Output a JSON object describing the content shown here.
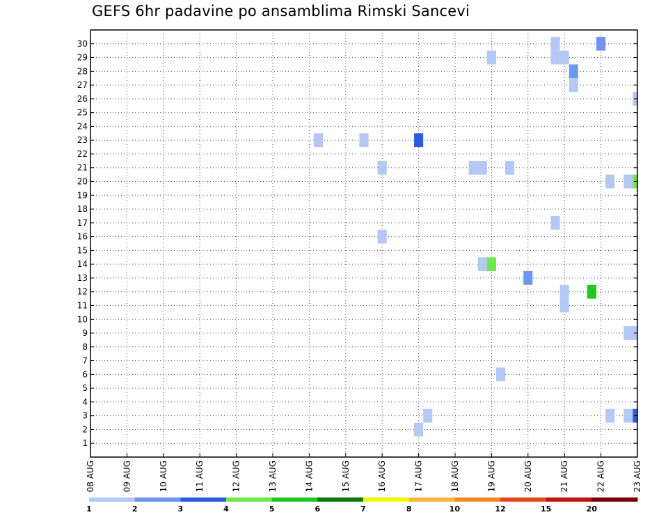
{
  "chart_data": {
    "type": "heatmap",
    "title": "GEFS 6hr padavine po ansamblima Rimski Sancevi",
    "xlabel": "",
    "ylabel": "",
    "x_tick_labels": [
      "08 AUG",
      "09 AUG",
      "10 AUG",
      "11 AUG",
      "12 AUG",
      "13 AUG",
      "14 AUG",
      "15 AUG",
      "16 AUG",
      "17 AUG",
      "18 AUG",
      "19 AUG",
      "20 AUG",
      "21 AUG",
      "22 AUG",
      "23 AUG"
    ],
    "xlim": [
      0,
      15
    ],
    "ylim": [
      0,
      31
    ],
    "y_ticks": [
      1,
      2,
      3,
      4,
      5,
      6,
      7,
      8,
      9,
      10,
      11,
      12,
      13,
      14,
      15,
      16,
      17,
      18,
      19,
      20,
      21,
      22,
      23,
      24,
      25,
      26,
      27,
      28,
      29,
      30
    ],
    "grid": true,
    "colorbar": {
      "placement": "bottom",
      "colors": [
        "#b4c8f4",
        "#6e96f0",
        "#2d5ce0",
        "#6ee84a",
        "#1ec81e",
        "#0a7a0a",
        "#f5f500",
        "#f8b840",
        "#f58a1e",
        "#e04a18",
        "#c01414",
        "#780000"
      ],
      "labels": [
        {
          "text": "1",
          "at": 0
        },
        {
          "text": "2",
          "at": 1
        },
        {
          "text": "3",
          "at": 2
        },
        {
          "text": "4",
          "at": 3
        },
        {
          "text": "5",
          "at": 4
        },
        {
          "text": "6",
          "at": 5
        },
        {
          "text": "7",
          "at": 6
        },
        {
          "text": "8",
          "at": 7
        },
        {
          "text": "10",
          "at": 8
        },
        {
          "text": "12",
          "at": 9
        },
        {
          "text": "15",
          "at": 10
        },
        {
          "text": "20",
          "at": 11
        }
      ]
    },
    "cells": [
      {
        "day": 6.25,
        "member": 23,
        "mm": 1
      },
      {
        "day": 7.5,
        "member": 23,
        "mm": 1
      },
      {
        "day": 9.0,
        "member": 23,
        "mm": 3
      },
      {
        "day": 8.0,
        "member": 21,
        "mm": 1
      },
      {
        "day": 8.0,
        "member": 16,
        "mm": 1
      },
      {
        "day": 10.5,
        "member": 21,
        "mm": 1
      },
      {
        "day": 10.75,
        "member": 21,
        "mm": 1
      },
      {
        "day": 11.5,
        "member": 21,
        "mm": 1
      },
      {
        "day": 11.0,
        "member": 29,
        "mm": 1
      },
      {
        "day": 10.75,
        "member": 14,
        "mm": 1
      },
      {
        "day": 11.0,
        "member": 14,
        "mm": 4
      },
      {
        "day": 12.0,
        "member": 13,
        "mm": 2
      },
      {
        "day": 11.25,
        "member": 6,
        "mm": 1
      },
      {
        "day": 9.0,
        "member": 2,
        "mm": 1
      },
      {
        "day": 9.25,
        "member": 3,
        "mm": 1
      },
      {
        "day": 12.75,
        "member": 30,
        "mm": 1
      },
      {
        "day": 12.75,
        "member": 29,
        "mm": 1
      },
      {
        "day": 13.0,
        "member": 29,
        "mm": 1
      },
      {
        "day": 13.25,
        "member": 28,
        "mm": 2
      },
      {
        "day": 13.25,
        "member": 27,
        "mm": 1
      },
      {
        "day": 14.0,
        "member": 30,
        "mm": 2
      },
      {
        "day": 15.0,
        "member": 26,
        "mm": 1
      },
      {
        "day": 12.75,
        "member": 17,
        "mm": 1
      },
      {
        "day": 13.0,
        "member": 12,
        "mm": 1
      },
      {
        "day": 13.0,
        "member": 11,
        "mm": 1
      },
      {
        "day": 13.75,
        "member": 12,
        "mm": 5
      },
      {
        "day": 14.25,
        "member": 20,
        "mm": 1
      },
      {
        "day": 14.75,
        "member": 20,
        "mm": 1
      },
      {
        "day": 15.0,
        "member": 20,
        "mm": 4
      },
      {
        "day": 14.75,
        "member": 9,
        "mm": 1
      },
      {
        "day": 15.0,
        "member": 9,
        "mm": 1
      },
      {
        "day": 14.25,
        "member": 3,
        "mm": 1
      },
      {
        "day": 14.75,
        "member": 3,
        "mm": 1
      },
      {
        "day": 15.0,
        "member": 3,
        "mm": 3
      }
    ]
  }
}
